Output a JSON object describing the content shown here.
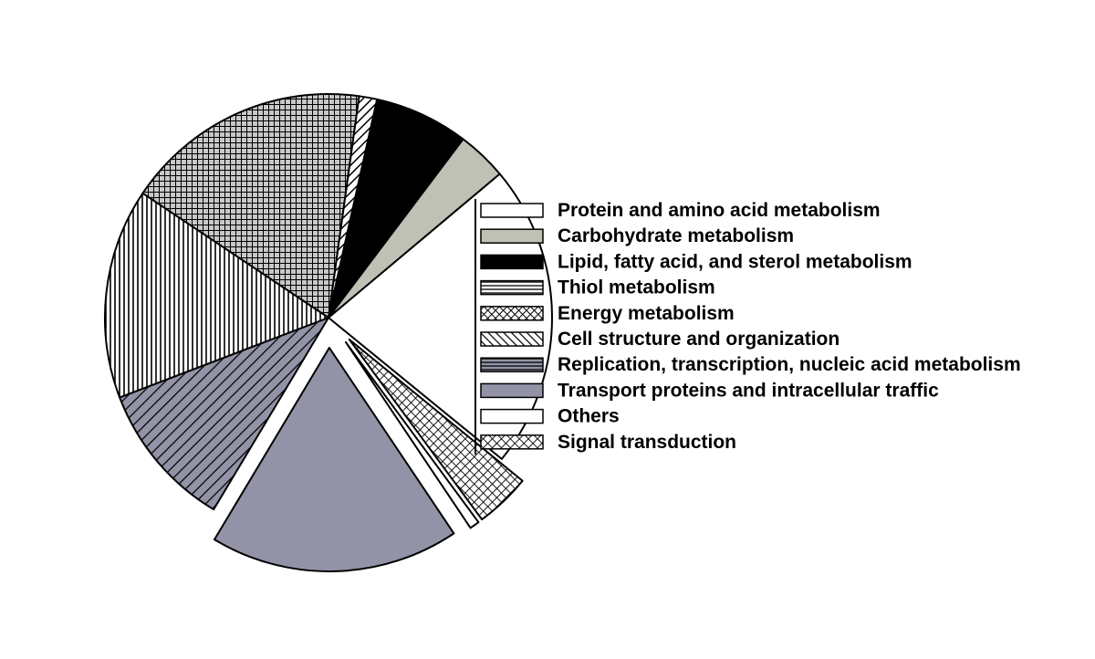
{
  "chart_data": {
    "type": "pie",
    "title": "",
    "legend_position": "right",
    "slices": [
      {
        "label": "Protein and amino acid metabolism",
        "value": 22.0,
        "fill": "#ffffff",
        "pattern": "none",
        "exploded": false
      },
      {
        "label": "Signal transduction",
        "value": 4.0,
        "fill": "#ffffff",
        "pattern": "crosshatch-fine",
        "exploded": true
      },
      {
        "label": "Others",
        "value": 0.7,
        "fill": "#ffffff",
        "pattern": "none",
        "exploded": true
      },
      {
        "label": "Transport proteins and intracellular traffic",
        "value": 18.0,
        "fill": "#9393a8",
        "pattern": "none",
        "exploded": true
      },
      {
        "label": "Replication, transcription, nucleic acid metabolism",
        "value": 10.6,
        "fill": "#9393a8",
        "pattern": "diagonal-stripes",
        "exploded": false
      },
      {
        "label": "Cell structure and organization",
        "value": 15.2,
        "fill": "#ffffff",
        "pattern": "vertical-lines",
        "exploded": false
      },
      {
        "label": "Energy metabolism",
        "value": 17.8,
        "fill": "#c8c8c8",
        "pattern": "grid",
        "exploded": false
      },
      {
        "label": "Thiol metabolism",
        "value": 1.3,
        "fill": "#ffffff",
        "pattern": "diagonal-stripes",
        "exploded": false
      },
      {
        "label": "Lipid, fatty acid, and sterol metabolism",
        "value": 6.8,
        "fill": "#000000",
        "pattern": "none",
        "exploded": false
      },
      {
        "label": "Carbohydrate metabolism",
        "value": 3.6,
        "fill": "#c0c1b5",
        "pattern": "none",
        "exploded": false
      }
    ],
    "legend": [
      {
        "label": "Protein and amino acid metabolism",
        "swatch": "white"
      },
      {
        "label": "Carbohydrate metabolism",
        "swatch": "gray"
      },
      {
        "label": "Lipid, fatty acid, and sterol metabolism",
        "swatch": "black"
      },
      {
        "label": "Thiol metabolism",
        "swatch": "horizontal-lines"
      },
      {
        "label": "Energy metabolism",
        "swatch": "crosshatch"
      },
      {
        "label": "Cell structure and organization",
        "swatch": "diagonal"
      },
      {
        "label": "Replication, transcription, nucleic acid metabolism",
        "swatch": "blue-gray-lined"
      },
      {
        "label": "Transport proteins and intracellular traffic",
        "swatch": "blue-gray"
      },
      {
        "label": "Others",
        "swatch": "white"
      },
      {
        "label": "Signal transduction",
        "swatch": "crosshatch-fine"
      }
    ]
  }
}
